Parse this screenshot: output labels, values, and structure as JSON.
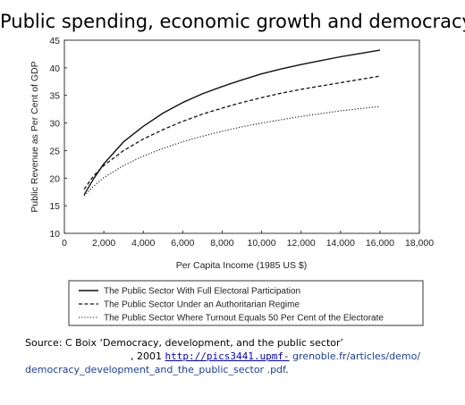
{
  "title": "Public spending, economic growth and democracy",
  "chart_data": {
    "type": "line",
    "xlabel": "Per Capita Income (1985 US $)",
    "ylabel": "Public Revenue as Per Cent of GDP",
    "xlim": [
      0,
      18000
    ],
    "ylim": [
      10,
      45
    ],
    "x_ticks": [
      0,
      2000,
      4000,
      6000,
      8000,
      10000,
      12000,
      14000,
      16000,
      18000
    ],
    "x_tick_labels": [
      "0",
      "2,000",
      "4,000",
      "6,000",
      "8,000",
      "10,000",
      "12,000",
      "14,000",
      "16,000",
      "18,000"
    ],
    "y_ticks": [
      10,
      15,
      20,
      25,
      30,
      35,
      40,
      45
    ],
    "y_tick_labels": [
      "10",
      "15",
      "20",
      "25",
      "30",
      "35",
      "40",
      "45"
    ],
    "grid": false,
    "legend_position": "bottom",
    "series": [
      {
        "name": "The Public Sector With Full Electoral Participation",
        "style": "solid",
        "x": [
          1000,
          1500,
          2000,
          3000,
          4000,
          5000,
          6000,
          7000,
          8000,
          9000,
          10000,
          11000,
          12000,
          13000,
          14000,
          15000,
          16000
        ],
        "y": [
          17.0,
          20.0,
          22.6,
          26.6,
          29.4,
          31.8,
          33.7,
          35.3,
          36.6,
          37.8,
          38.9,
          39.8,
          40.6,
          41.3,
          42.0,
          42.6,
          43.2
        ]
      },
      {
        "name": "The Public Sector Under an Authoritarian Regime",
        "style": "dashed",
        "x": [
          1000,
          1500,
          2000,
          3000,
          4000,
          5000,
          6000,
          7000,
          8000,
          9000,
          10000,
          11000,
          12000,
          13000,
          14000,
          15000,
          16000
        ],
        "y": [
          18.0,
          20.5,
          22.3,
          25.0,
          27.1,
          28.8,
          30.3,
          31.6,
          32.7,
          33.7,
          34.6,
          35.4,
          36.1,
          36.7,
          37.3,
          37.9,
          38.5
        ]
      },
      {
        "name": "The Public Sector Where Turnout Equals 50 Per Cent of the Electorate",
        "style": "dotted",
        "x": [
          1000,
          1500,
          2000,
          3000,
          4000,
          5000,
          6000,
          7000,
          8000,
          9000,
          10000,
          11000,
          12000,
          13000,
          14000,
          15000,
          16000
        ],
        "y": [
          16.8,
          18.6,
          20.1,
          22.3,
          24.0,
          25.4,
          26.6,
          27.6,
          28.5,
          29.3,
          30.0,
          30.6,
          31.2,
          31.7,
          32.2,
          32.6,
          33.0
        ]
      }
    ]
  },
  "source": {
    "line1": "Source: C Boix ‘Democracy, development, and the public sector’",
    "line2_prefix": ", 2001 ",
    "link": "http://pics3441.upmf-",
    "line2_rest": " grenoble.fr/articles/demo/",
    "line3": "democracy_development_and_the_public_sector .pdf",
    "line3_suffix": "."
  }
}
